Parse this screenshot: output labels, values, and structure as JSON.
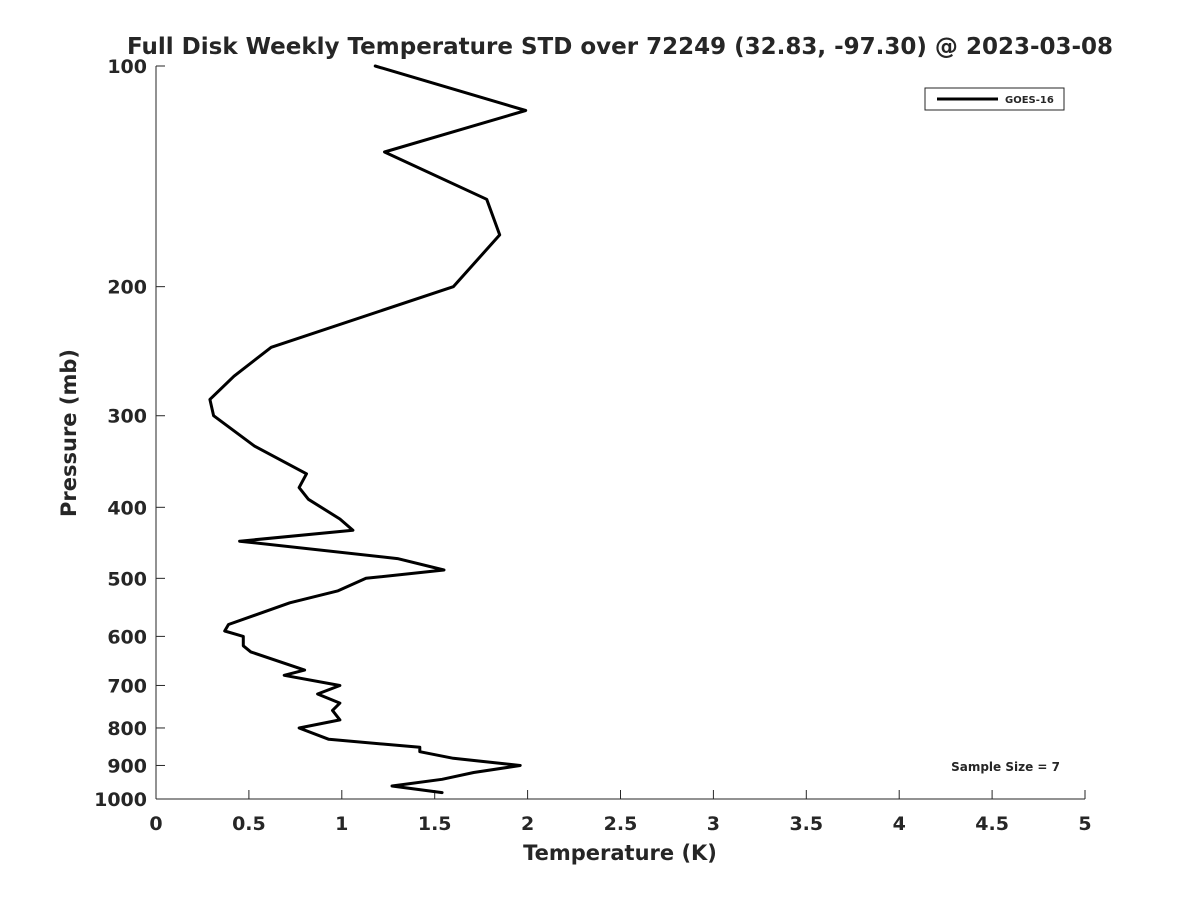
{
  "chart_data": {
    "type": "line",
    "title": "Full Disk Weekly Temperature STD over 72249 (32.83, -97.30) @ 2023-03-08",
    "xlabel": "Temperature (K)",
    "ylabel": "Pressure (mb)",
    "xlim": [
      0,
      5
    ],
    "ylim": [
      100,
      1000
    ],
    "y_scale": "log",
    "y_reversed": true,
    "xticks": [
      0,
      0.5,
      1,
      1.5,
      2,
      2.5,
      3,
      3.5,
      4,
      4.5,
      5
    ],
    "xtick_labels": [
      "0",
      "0.5",
      "1",
      "1.5",
      "2",
      "2.5",
      "3",
      "3.5",
      "4",
      "4.5",
      "5"
    ],
    "yticks": [
      100,
      200,
      300,
      400,
      500,
      600,
      700,
      800,
      900,
      1000
    ],
    "ytick_labels": [
      "100",
      "200",
      "300",
      "400",
      "500",
      "600",
      "700",
      "800",
      "900",
      "1000"
    ],
    "grid": false,
    "legend": {
      "position": "top-right",
      "entries": [
        "GOES-16"
      ]
    },
    "annotation": "Sample Size = 7",
    "series": [
      {
        "name": "GOES-16",
        "color": "#000000",
        "points": [
          [
            1.18,
            100
          ],
          [
            1.99,
            115
          ],
          [
            1.23,
            131
          ],
          [
            1.78,
            152
          ],
          [
            1.85,
            170
          ],
          [
            1.6,
            200
          ],
          [
            0.62,
            242
          ],
          [
            0.42,
            265
          ],
          [
            0.29,
            285
          ],
          [
            0.31,
            300
          ],
          [
            0.53,
            330
          ],
          [
            0.81,
            360
          ],
          [
            0.77,
            376
          ],
          [
            0.82,
            390
          ],
          [
            0.99,
            415
          ],
          [
            1.06,
            430
          ],
          [
            0.45,
            445
          ],
          [
            1.3,
            470
          ],
          [
            1.55,
            487
          ],
          [
            1.13,
            500
          ],
          [
            0.98,
            520
          ],
          [
            0.72,
            540
          ],
          [
            0.39,
            578
          ],
          [
            0.37,
            590
          ],
          [
            0.47,
            600
          ],
          [
            0.47,
            618
          ],
          [
            0.51,
            630
          ],
          [
            0.8,
            667
          ],
          [
            0.69,
            678
          ],
          [
            0.99,
            700
          ],
          [
            0.87,
            719
          ],
          [
            0.99,
            740
          ],
          [
            0.95,
            757
          ],
          [
            0.99,
            780
          ],
          [
            0.77,
            800
          ],
          [
            0.93,
            829
          ],
          [
            1.42,
            850
          ],
          [
            1.42,
            862
          ],
          [
            1.6,
            880
          ],
          [
            1.96,
            900
          ],
          [
            1.71,
            920
          ],
          [
            1.54,
            940
          ],
          [
            1.27,
            960
          ],
          [
            1.54,
            980
          ]
        ]
      }
    ]
  }
}
